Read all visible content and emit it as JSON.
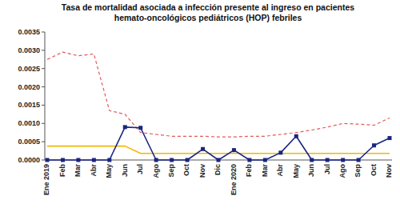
{
  "chart_data": {
    "type": "line",
    "title": "Tasa de mortalidad asociada a infección presente al ingreso en pacientes hemato-oncológicos pediátricos (HOP) febriles",
    "categories": [
      "Ene 2019",
      "Feb",
      "Mar",
      "Abr",
      "May",
      "Jun",
      "Jul",
      "Ago",
      "Sep",
      "Oct",
      "Nov",
      "Dic",
      "Ene 2020",
      "Feb",
      "Mar",
      "Abr",
      "May",
      "Jun",
      "Jul",
      "Ago",
      "Sep",
      "Oct",
      "Nov"
    ],
    "series": [
      {
        "color": "#1b2580",
        "marker": "square",
        "line_style": "solid",
        "values": [
          0,
          0,
          0,
          0,
          0,
          0.0009,
          0.00088,
          0,
          0,
          0,
          0.0003,
          0,
          0.00027,
          0,
          0,
          0.0002,
          0.00065,
          0,
          0,
          0,
          0,
          0.0004,
          0.0006
        ]
      },
      {
        "color": "#e05a5a",
        "marker": "none",
        "line_style": "dashed",
        "values": [
          0.00275,
          0.00295,
          0.00285,
          0.0029,
          0.00135,
          0.00125,
          0.00075,
          0.0007,
          0.00065,
          0.00065,
          0.00065,
          0.00063,
          0.00063,
          0.00065,
          0.00065,
          0.0007,
          0.00075,
          0.00082,
          0.0009,
          0.001,
          0.00098,
          0.00095,
          0.00115
        ]
      },
      {
        "color": "#f2b705",
        "marker": "none",
        "line_style": "solid",
        "values": [
          0.00038,
          0.00038,
          0.00038,
          0.00038,
          0.00038,
          0.00038,
          0.00018,
          0.00018,
          0.00018,
          0.00018,
          0.00018,
          0.00018,
          0.00018,
          0.00018,
          0.00018,
          0.00018,
          0.00018,
          0.00018,
          0.00018,
          0.00018,
          0.00018,
          0.00018,
          0.00018
        ]
      }
    ],
    "ylim": [
      0,
      0.0035
    ],
    "yticks": [
      {
        "value": 0,
        "label": "0.0000"
      },
      {
        "value": 0.0005,
        "label": "0.0005"
      },
      {
        "value": 0.001,
        "label": "0.0010"
      },
      {
        "value": 0.0015,
        "label": "0.0015"
      },
      {
        "value": 0.002,
        "label": "0.0020"
      },
      {
        "value": 0.0025,
        "label": "0.0025"
      },
      {
        "value": 0.003,
        "label": "0.0030"
      },
      {
        "value": 0.0035,
        "label": "0.0035"
      }
    ],
    "grid": false
  }
}
